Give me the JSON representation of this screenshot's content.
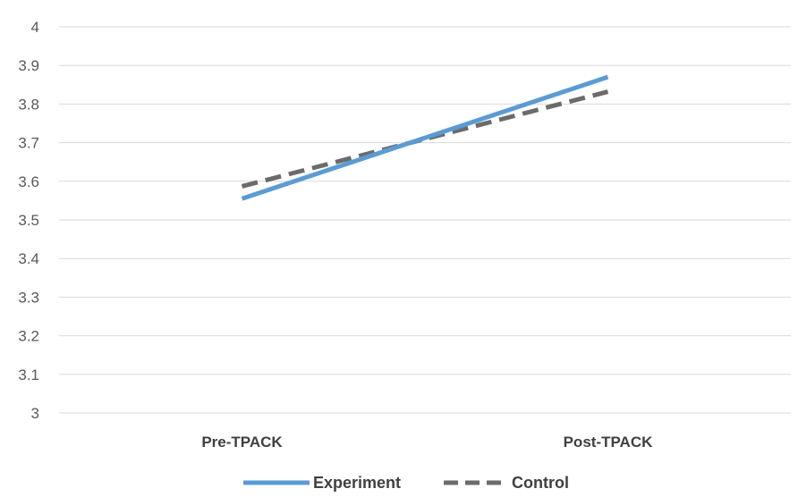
{
  "chart_data": {
    "type": "line",
    "categories": [
      "Pre-TPACK",
      "Post-TPACK"
    ],
    "series": [
      {
        "name": "Experiment",
        "values": [
          3.555,
          3.87
        ],
        "color": "#5b9bd5",
        "style": "solid"
      },
      {
        "name": "Control",
        "values": [
          3.587,
          3.832
        ],
        "color": "#6b6b6b",
        "style": "dashed"
      }
    ],
    "yticks": [
      "3",
      "3.1",
      "3.2",
      "3.3",
      "3.4",
      "3.5",
      "3.6",
      "3.7",
      "3.8",
      "3.9",
      "4"
    ],
    "ylim": [
      3,
      4
    ],
    "grid": true,
    "legend_position": "bottom"
  }
}
